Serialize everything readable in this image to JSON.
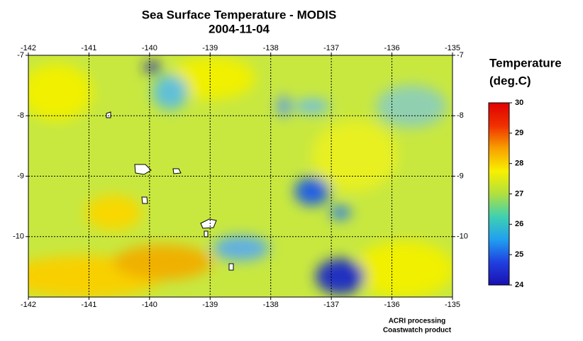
{
  "map": {
    "title": "Sea Surface Temperature - MODIS",
    "date": "2004-11-04",
    "xlim": [
      -142,
      -135
    ],
    "xticks": [
      -142,
      -141,
      -140,
      -139,
      -138,
      -137,
      -136,
      -135
    ],
    "ylim": [
      -11,
      -7
    ],
    "yticks": [
      -7,
      -8,
      -9,
      -10
    ],
    "colorbar": {
      "title": [
        "Temperature",
        "(deg.C)"
      ],
      "lim": [
        24,
        30
      ],
      "ticks": [
        24,
        25,
        26,
        27,
        28,
        29,
        30
      ],
      "colors": [
        "#1a10b0",
        "#2040e0",
        "#20a0f0",
        "#40d0b0",
        "#b0e040",
        "#f8f000",
        "#f8a000",
        "#f03000",
        "#e00000"
      ]
    },
    "credits": [
      "ACRI processing",
      "Coastwatch product"
    ]
  }
}
